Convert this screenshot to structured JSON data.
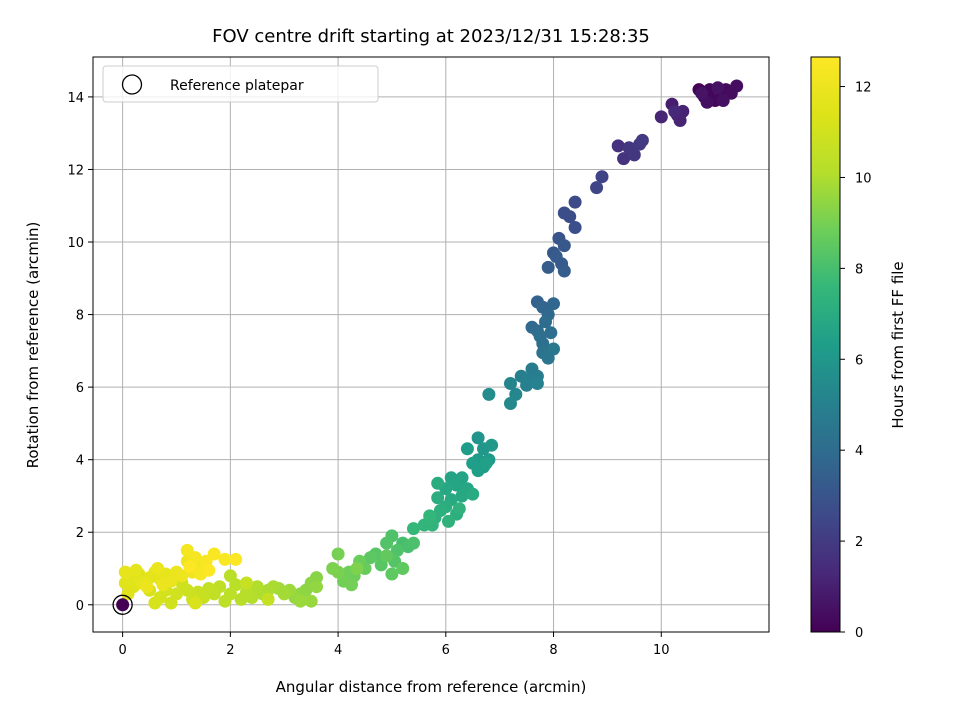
{
  "chart_data": {
    "type": "scatter",
    "title": "FOV centre drift starting at 2023/12/31 15:28:35",
    "xlabel": "Angular distance from reference (arcmin)",
    "ylabel": "Rotation from reference (arcmin)",
    "xlim": [
      -0.55,
      12.0
    ],
    "ylim": [
      -0.75,
      15.1
    ],
    "xticks": [
      0,
      2,
      4,
      6,
      8,
      10
    ],
    "yticks": [
      0,
      2,
      4,
      6,
      8,
      10,
      12,
      14
    ],
    "grid": true,
    "legend": {
      "position": "top-left",
      "entries": [
        "Reference platepar"
      ]
    },
    "reference_point": {
      "x": 0,
      "y": 0,
      "hours": 0
    },
    "colorbar": {
      "label": "Hours from first FF file",
      "min": 0,
      "max": 12.65,
      "ticks": [
        0,
        2,
        4,
        6,
        8,
        10,
        12
      ],
      "colormap": "viridis"
    },
    "points": [
      {
        "x": 10.7,
        "y": 14.2,
        "h": 0.05
      },
      {
        "x": 10.8,
        "y": 14.0,
        "h": 0.1
      },
      {
        "x": 10.9,
        "y": 14.2,
        "h": 0.15
      },
      {
        "x": 11.0,
        "y": 13.9,
        "h": 0.2
      },
      {
        "x": 11.1,
        "y": 14.0,
        "h": 0.25
      },
      {
        "x": 11.2,
        "y": 14.2,
        "h": 0.3
      },
      {
        "x": 11.3,
        "y": 14.1,
        "h": 0.35
      },
      {
        "x": 11.4,
        "y": 14.3,
        "h": 0.4
      },
      {
        "x": 10.85,
        "y": 13.85,
        "h": 0.45
      },
      {
        "x": 11.15,
        "y": 13.9,
        "h": 0.5
      },
      {
        "x": 11.05,
        "y": 14.25,
        "h": 0.55
      },
      {
        "x": 10.75,
        "y": 14.1,
        "h": 0.6
      },
      {
        "x": 10.2,
        "y": 13.8,
        "h": 0.9
      },
      {
        "x": 10.3,
        "y": 13.5,
        "h": 1.0
      },
      {
        "x": 10.4,
        "y": 13.6,
        "h": 1.1
      },
      {
        "x": 10.35,
        "y": 13.35,
        "h": 1.15
      },
      {
        "x": 10.0,
        "y": 13.45,
        "h": 1.2
      },
      {
        "x": 10.25,
        "y": 13.6,
        "h": 1.25
      },
      {
        "x": 9.2,
        "y": 12.65,
        "h": 1.6
      },
      {
        "x": 9.3,
        "y": 12.3,
        "h": 1.7
      },
      {
        "x": 9.4,
        "y": 12.6,
        "h": 1.8
      },
      {
        "x": 9.5,
        "y": 12.4,
        "h": 1.85
      },
      {
        "x": 9.6,
        "y": 12.7,
        "h": 1.9
      },
      {
        "x": 9.65,
        "y": 12.8,
        "h": 1.95
      },
      {
        "x": 8.9,
        "y": 11.8,
        "h": 2.3
      },
      {
        "x": 8.8,
        "y": 11.5,
        "h": 2.4
      },
      {
        "x": 8.4,
        "y": 11.1,
        "h": 2.6
      },
      {
        "x": 8.3,
        "y": 10.7,
        "h": 2.7
      },
      {
        "x": 8.4,
        "y": 10.4,
        "h": 2.8
      },
      {
        "x": 8.2,
        "y": 10.8,
        "h": 2.75
      },
      {
        "x": 8.1,
        "y": 10.1,
        "h": 3.0
      },
      {
        "x": 8.0,
        "y": 9.7,
        "h": 3.1
      },
      {
        "x": 8.2,
        "y": 9.9,
        "h": 3.15
      },
      {
        "x": 8.15,
        "y": 9.4,
        "h": 3.2
      },
      {
        "x": 7.9,
        "y": 9.3,
        "h": 3.3
      },
      {
        "x": 8.2,
        "y": 9.2,
        "h": 3.35
      },
      {
        "x": 8.05,
        "y": 9.6,
        "h": 3.25
      },
      {
        "x": 7.7,
        "y": 8.35,
        "h": 3.6
      },
      {
        "x": 7.8,
        "y": 8.2,
        "h": 3.7
      },
      {
        "x": 7.9,
        "y": 8.0,
        "h": 3.8
      },
      {
        "x": 8.0,
        "y": 8.3,
        "h": 3.75
      },
      {
        "x": 7.6,
        "y": 7.65,
        "h": 3.9
      },
      {
        "x": 7.7,
        "y": 7.55,
        "h": 4.0
      },
      {
        "x": 7.85,
        "y": 7.8,
        "h": 4.05
      },
      {
        "x": 7.95,
        "y": 7.5,
        "h": 4.1
      },
      {
        "x": 7.8,
        "y": 7.2,
        "h": 4.2
      },
      {
        "x": 7.75,
        "y": 7.4,
        "h": 4.15
      },
      {
        "x": 7.8,
        "y": 6.95,
        "h": 4.4
      },
      {
        "x": 7.9,
        "y": 6.8,
        "h": 4.5
      },
      {
        "x": 8.0,
        "y": 7.05,
        "h": 4.55
      },
      {
        "x": 7.6,
        "y": 6.5,
        "h": 4.7
      },
      {
        "x": 7.7,
        "y": 6.3,
        "h": 4.8
      },
      {
        "x": 7.5,
        "y": 6.2,
        "h": 4.85
      },
      {
        "x": 7.4,
        "y": 6.3,
        "h": 4.9
      },
      {
        "x": 7.5,
        "y": 6.05,
        "h": 4.95
      },
      {
        "x": 7.7,
        "y": 6.1,
        "h": 5.0
      },
      {
        "x": 7.2,
        "y": 6.1,
        "h": 5.2
      },
      {
        "x": 7.3,
        "y": 5.8,
        "h": 5.3
      },
      {
        "x": 7.2,
        "y": 5.55,
        "h": 5.35
      },
      {
        "x": 6.8,
        "y": 5.8,
        "h": 5.5
      },
      {
        "x": 6.6,
        "y": 4.6,
        "h": 5.9
      },
      {
        "x": 6.7,
        "y": 4.3,
        "h": 6.0
      },
      {
        "x": 6.8,
        "y": 4.0,
        "h": 6.1
      },
      {
        "x": 6.85,
        "y": 4.4,
        "h": 6.05
      },
      {
        "x": 6.6,
        "y": 4.0,
        "h": 6.2
      },
      {
        "x": 6.7,
        "y": 3.8,
        "h": 6.25
      },
      {
        "x": 6.4,
        "y": 4.3,
        "h": 6.3
      },
      {
        "x": 6.5,
        "y": 3.9,
        "h": 6.35
      },
      {
        "x": 6.6,
        "y": 3.7,
        "h": 6.4
      },
      {
        "x": 6.75,
        "y": 3.9,
        "h": 6.45
      },
      {
        "x": 6.3,
        "y": 3.5,
        "h": 6.6
      },
      {
        "x": 6.1,
        "y": 3.5,
        "h": 6.65
      },
      {
        "x": 6.2,
        "y": 3.3,
        "h": 6.7
      },
      {
        "x": 6.4,
        "y": 3.2,
        "h": 6.75
      },
      {
        "x": 6.0,
        "y": 3.2,
        "h": 6.8
      },
      {
        "x": 6.3,
        "y": 3.0,
        "h": 6.85
      },
      {
        "x": 6.1,
        "y": 2.9,
        "h": 6.9
      },
      {
        "x": 6.5,
        "y": 3.05,
        "h": 6.95
      },
      {
        "x": 5.85,
        "y": 3.35,
        "h": 7.0
      },
      {
        "x": 5.85,
        "y": 2.95,
        "h": 7.05
      },
      {
        "x": 6.0,
        "y": 2.7,
        "h": 7.1
      },
      {
        "x": 6.2,
        "y": 2.5,
        "h": 7.15
      },
      {
        "x": 5.9,
        "y": 2.6,
        "h": 7.2
      },
      {
        "x": 5.8,
        "y": 2.4,
        "h": 7.25
      },
      {
        "x": 6.25,
        "y": 2.65,
        "h": 7.3
      },
      {
        "x": 6.05,
        "y": 2.3,
        "h": 7.35
      },
      {
        "x": 5.75,
        "y": 2.2,
        "h": 7.4
      },
      {
        "x": 5.6,
        "y": 2.2,
        "h": 7.45
      },
      {
        "x": 5.4,
        "y": 2.1,
        "h": 7.6
      },
      {
        "x": 5.7,
        "y": 2.45,
        "h": 7.55
      },
      {
        "x": 5.2,
        "y": 1.7,
        "h": 8.0
      },
      {
        "x": 5.3,
        "y": 1.6,
        "h": 8.05
      },
      {
        "x": 5.4,
        "y": 1.7,
        "h": 8.1
      },
      {
        "x": 5.0,
        "y": 1.9,
        "h": 8.15
      },
      {
        "x": 5.1,
        "y": 1.5,
        "h": 8.2
      },
      {
        "x": 4.9,
        "y": 1.7,
        "h": 8.25
      },
      {
        "x": 5.05,
        "y": 1.2,
        "h": 8.3
      },
      {
        "x": 4.7,
        "y": 1.4,
        "h": 8.35
      },
      {
        "x": 4.8,
        "y": 1.1,
        "h": 8.4
      },
      {
        "x": 4.6,
        "y": 1.3,
        "h": 8.45
      },
      {
        "x": 5.0,
        "y": 0.85,
        "h": 8.5
      },
      {
        "x": 5.2,
        "y": 1.0,
        "h": 8.55
      },
      {
        "x": 4.9,
        "y": 1.35,
        "h": 8.6
      },
      {
        "x": 4.5,
        "y": 1.0,
        "h": 8.7
      },
      {
        "x": 4.4,
        "y": 1.2,
        "h": 8.75
      },
      {
        "x": 4.3,
        "y": 0.8,
        "h": 8.8
      },
      {
        "x": 4.2,
        "y": 0.9,
        "h": 8.85
      },
      {
        "x": 4.1,
        "y": 0.65,
        "h": 8.9
      },
      {
        "x": 4.25,
        "y": 0.55,
        "h": 8.95
      },
      {
        "x": 4.0,
        "y": 1.4,
        "h": 9.0
      },
      {
        "x": 4.0,
        "y": 0.9,
        "h": 9.05
      },
      {
        "x": 3.9,
        "y": 1.0,
        "h": 9.1
      },
      {
        "x": 4.35,
        "y": 1.0,
        "h": 9.15
      },
      {
        "x": 3.6,
        "y": 0.75,
        "h": 9.3
      },
      {
        "x": 3.5,
        "y": 0.6,
        "h": 9.35
      },
      {
        "x": 3.4,
        "y": 0.4,
        "h": 9.4
      },
      {
        "x": 3.3,
        "y": 0.3,
        "h": 9.45
      },
      {
        "x": 3.6,
        "y": 0.5,
        "h": 9.5
      },
      {
        "x": 3.2,
        "y": 0.2,
        "h": 9.55
      },
      {
        "x": 3.5,
        "y": 0.1,
        "h": 9.6
      },
      {
        "x": 3.3,
        "y": 0.1,
        "h": 9.65
      },
      {
        "x": 3.1,
        "y": 0.4,
        "h": 9.7
      },
      {
        "x": 2.9,
        "y": 0.45,
        "h": 9.75
      },
      {
        "x": 3.0,
        "y": 0.3,
        "h": 9.8
      },
      {
        "x": 2.8,
        "y": 0.5,
        "h": 9.9
      },
      {
        "x": 2.7,
        "y": 0.4,
        "h": 9.95
      },
      {
        "x": 2.6,
        "y": 0.3,
        "h": 10.0
      },
      {
        "x": 2.5,
        "y": 0.5,
        "h": 10.05
      },
      {
        "x": 2.4,
        "y": 0.2,
        "h": 10.1
      },
      {
        "x": 2.3,
        "y": 0.35,
        "h": 10.15
      },
      {
        "x": 2.2,
        "y": 0.15,
        "h": 10.2
      },
      {
        "x": 2.1,
        "y": 0.55,
        "h": 10.25
      },
      {
        "x": 2.0,
        "y": 0.8,
        "h": 10.3
      },
      {
        "x": 2.0,
        "y": 0.3,
        "h": 10.35
      },
      {
        "x": 1.9,
        "y": 0.1,
        "h": 10.4
      },
      {
        "x": 1.8,
        "y": 0.5,
        "h": 10.45
      },
      {
        "x": 1.7,
        "y": 0.3,
        "h": 10.5
      },
      {
        "x": 1.6,
        "y": 0.45,
        "h": 10.55
      },
      {
        "x": 2.7,
        "y": 0.15,
        "h": 10.6
      },
      {
        "x": 2.3,
        "y": 0.6,
        "h": 10.65
      },
      {
        "x": 1.5,
        "y": 0.2,
        "h": 10.7
      },
      {
        "x": 1.4,
        "y": 0.35,
        "h": 10.75
      },
      {
        "x": 1.3,
        "y": 0.15,
        "h": 10.8
      },
      {
        "x": 1.2,
        "y": 0.4,
        "h": 10.85
      },
      {
        "x": 1.1,
        "y": 0.6,
        "h": 10.9
      },
      {
        "x": 1.0,
        "y": 0.3,
        "h": 10.95
      },
      {
        "x": 0.9,
        "y": 0.05,
        "h": 11.0
      },
      {
        "x": 0.8,
        "y": 0.4,
        "h": 11.05
      },
      {
        "x": 0.7,
        "y": 0.2,
        "h": 11.1
      },
      {
        "x": 0.6,
        "y": 0.05,
        "h": 11.15
      },
      {
        "x": 0.5,
        "y": 0.4,
        "h": 11.2
      },
      {
        "x": 1.35,
        "y": 0.05,
        "h": 11.25
      },
      {
        "x": 0.4,
        "y": 0.7,
        "h": 11.35
      },
      {
        "x": 0.3,
        "y": 0.85,
        "h": 11.4
      },
      {
        "x": 0.2,
        "y": 0.5,
        "h": 11.45
      },
      {
        "x": 0.1,
        "y": 0.3,
        "h": 11.5
      },
      {
        "x": 0.05,
        "y": 0.6,
        "h": 11.55
      },
      {
        "x": 0.15,
        "y": 0.8,
        "h": 11.6
      },
      {
        "x": 0.6,
        "y": 0.9,
        "h": 11.65
      },
      {
        "x": 0.7,
        "y": 0.7,
        "h": 11.7
      },
      {
        "x": 0.5,
        "y": 0.75,
        "h": 11.72
      },
      {
        "x": 0.35,
        "y": 0.6,
        "h": 11.74
      },
      {
        "x": 0.25,
        "y": 0.95,
        "h": 11.76
      },
      {
        "x": 0.05,
        "y": 0.9,
        "h": 11.78
      },
      {
        "x": 0.8,
        "y": 0.85,
        "h": 11.8
      },
      {
        "x": 0.9,
        "y": 0.65,
        "h": 11.85
      },
      {
        "x": 1.0,
        "y": 0.9,
        "h": 11.9
      },
      {
        "x": 0.65,
        "y": 1.0,
        "h": 11.95
      },
      {
        "x": 0.45,
        "y": 0.5,
        "h": 11.97
      },
      {
        "x": 0.75,
        "y": 0.55,
        "h": 11.99
      },
      {
        "x": 1.1,
        "y": 0.8,
        "h": 12.0
      },
      {
        "x": 1.2,
        "y": 1.2,
        "h": 12.1
      },
      {
        "x": 1.3,
        "y": 0.9,
        "h": 12.15
      },
      {
        "x": 1.4,
        "y": 1.1,
        "h": 12.2
      },
      {
        "x": 1.5,
        "y": 1.0,
        "h": 12.25
      },
      {
        "x": 1.2,
        "y": 1.5,
        "h": 12.3
      },
      {
        "x": 1.35,
        "y": 1.3,
        "h": 12.35
      },
      {
        "x": 1.45,
        "y": 0.85,
        "h": 12.4
      },
      {
        "x": 1.55,
        "y": 1.2,
        "h": 12.45
      },
      {
        "x": 1.7,
        "y": 1.4,
        "h": 12.5
      },
      {
        "x": 1.9,
        "y": 1.25,
        "h": 12.55
      },
      {
        "x": 2.1,
        "y": 1.25,
        "h": 12.6
      },
      {
        "x": 1.6,
        "y": 0.95,
        "h": 12.62
      },
      {
        "x": 1.25,
        "y": 1.05,
        "h": 12.64
      }
    ]
  }
}
